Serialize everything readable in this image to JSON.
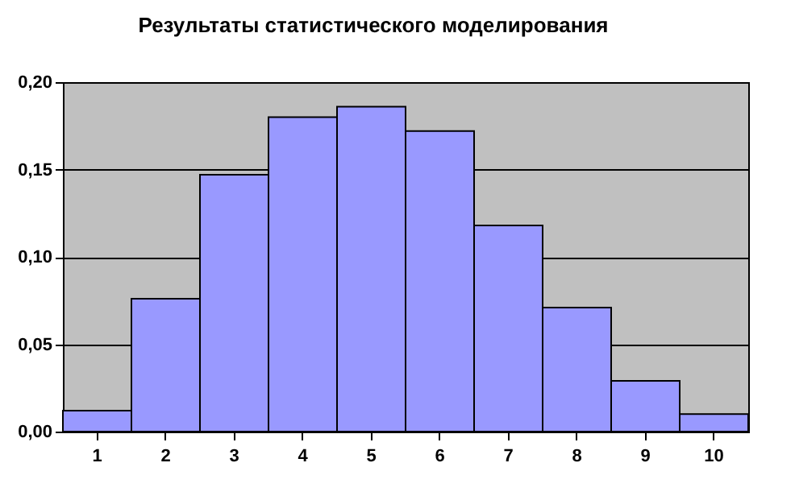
{
  "chart_data": {
    "type": "bar",
    "title": "Результаты статистического моделирования",
    "categories": [
      "1",
      "2",
      "3",
      "4",
      "5",
      "6",
      "7",
      "8",
      "9",
      "10"
    ],
    "values": [
      0.012,
      0.076,
      0.147,
      0.18,
      0.186,
      0.172,
      0.118,
      0.071,
      0.029,
      0.01
    ],
    "color": "#9999ff",
    "ylim": [
      0,
      0.2
    ],
    "yticks": [
      {
        "value": 0,
        "label": "0,00"
      },
      {
        "value": 0.05,
        "label": "0,05"
      },
      {
        "value": 0.1,
        "label": "0,10"
      },
      {
        "value": 0.15,
        "label": "0,15"
      },
      {
        "value": 0.2,
        "label": "0,20"
      }
    ],
    "grid": "y"
  }
}
